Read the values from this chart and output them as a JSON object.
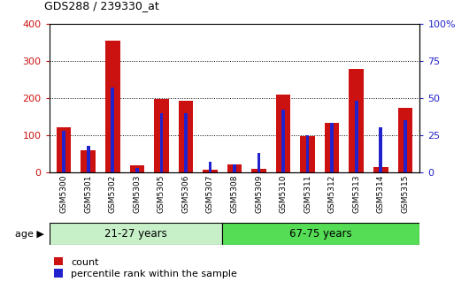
{
  "title": "GDS288 / 239330_at",
  "categories": [
    "GSM5300",
    "GSM5301",
    "GSM5302",
    "GSM5303",
    "GSM5305",
    "GSM5306",
    "GSM5307",
    "GSM5308",
    "GSM5309",
    "GSM5310",
    "GSM5311",
    "GSM5312",
    "GSM5313",
    "GSM5314",
    "GSM5315"
  ],
  "count_values": [
    120,
    60,
    355,
    18,
    198,
    192,
    8,
    20,
    10,
    210,
    98,
    133,
    278,
    15,
    173
  ],
  "percentile_values": [
    28,
    18,
    57,
    3,
    40,
    40,
    7,
    5,
    13,
    42,
    25,
    33,
    48,
    30,
    35
  ],
  "count_color": "#cc1111",
  "percentile_color": "#2222cc",
  "ylim_left": [
    0,
    400
  ],
  "ylim_right": [
    0,
    100
  ],
  "yticks_left": [
    0,
    100,
    200,
    300,
    400
  ],
  "yticks_right": [
    0,
    25,
    50,
    75,
    100
  ],
  "yticklabels_left": [
    "0",
    "100",
    "200",
    "300",
    "400"
  ],
  "yticklabels_right": [
    "0",
    "25",
    "50",
    "75",
    "100%"
  ],
  "grid_color": "#000000",
  "bg_color": "#ffffff",
  "age_group1": "21-27 years",
  "age_group2": "67-75 years",
  "age_group1_color": "#c8f0c8",
  "age_group2_color": "#55dd55",
  "age_group1_count": 7,
  "age_group2_count": 8,
  "count_color_left": "#cc1111",
  "percentile_color_right": "#2222cc",
  "legend_count": "count",
  "legend_percentile": "percentile rank within the sample"
}
